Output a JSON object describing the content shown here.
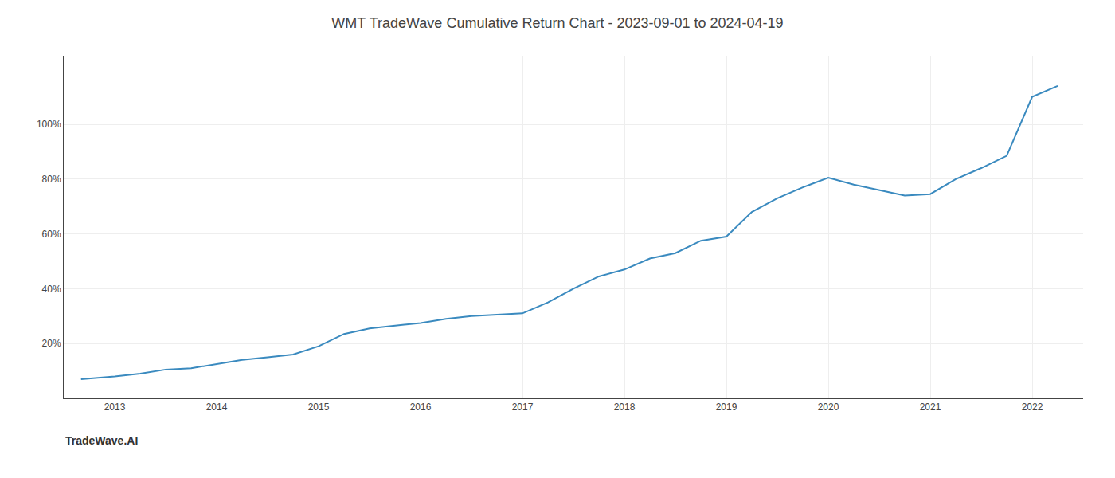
{
  "chart_data": {
    "type": "line",
    "title": "WMT TradeWave Cumulative Return Chart - 2023-09-01 to 2024-04-19",
    "annotations": [
      "TradeWave.AI"
    ],
    "x": [
      2012.67,
      2013.0,
      2013.25,
      2013.5,
      2013.75,
      2014.0,
      2014.25,
      2014.5,
      2014.75,
      2015.0,
      2015.25,
      2015.5,
      2015.75,
      2016.0,
      2016.25,
      2016.5,
      2016.75,
      2017.0,
      2017.25,
      2017.5,
      2017.75,
      2018.0,
      2018.25,
      2018.5,
      2018.75,
      2019.0,
      2019.25,
      2019.5,
      2019.75,
      2020.0,
      2020.25,
      2020.5,
      2020.75,
      2021.0,
      2021.25,
      2021.5,
      2021.75,
      2022.0,
      2022.25
    ],
    "values": [
      7.0,
      8.0,
      9.0,
      10.5,
      11.0,
      12.5,
      14.0,
      15.0,
      16.0,
      19.0,
      23.5,
      25.5,
      26.5,
      27.5,
      29.0,
      30.0,
      30.5,
      31.0,
      35.0,
      40.0,
      44.5,
      47.0,
      51.0,
      53.0,
      57.5,
      59.0,
      68.0,
      73.0,
      77.0,
      80.5,
      78.0,
      76.0,
      74.0,
      74.5,
      80.0,
      84.0,
      88.5,
      110.0,
      114.0
    ],
    "color": "#3a8abf",
    "xlim": [
      2012.5,
      2022.5
    ],
    "xticks": [
      2013,
      2014,
      2015,
      2016,
      2017,
      2018,
      2019,
      2020,
      2021,
      2022
    ],
    "ylim": [
      0,
      125
    ],
    "yticks": [
      {
        "value": 20,
        "label": "20%"
      },
      {
        "value": 40,
        "label": "40%"
      },
      {
        "value": 60,
        "label": "60%"
      },
      {
        "value": 80,
        "label": "80%"
      },
      {
        "value": 100,
        "label": "100%"
      }
    ],
    "grid": true
  }
}
